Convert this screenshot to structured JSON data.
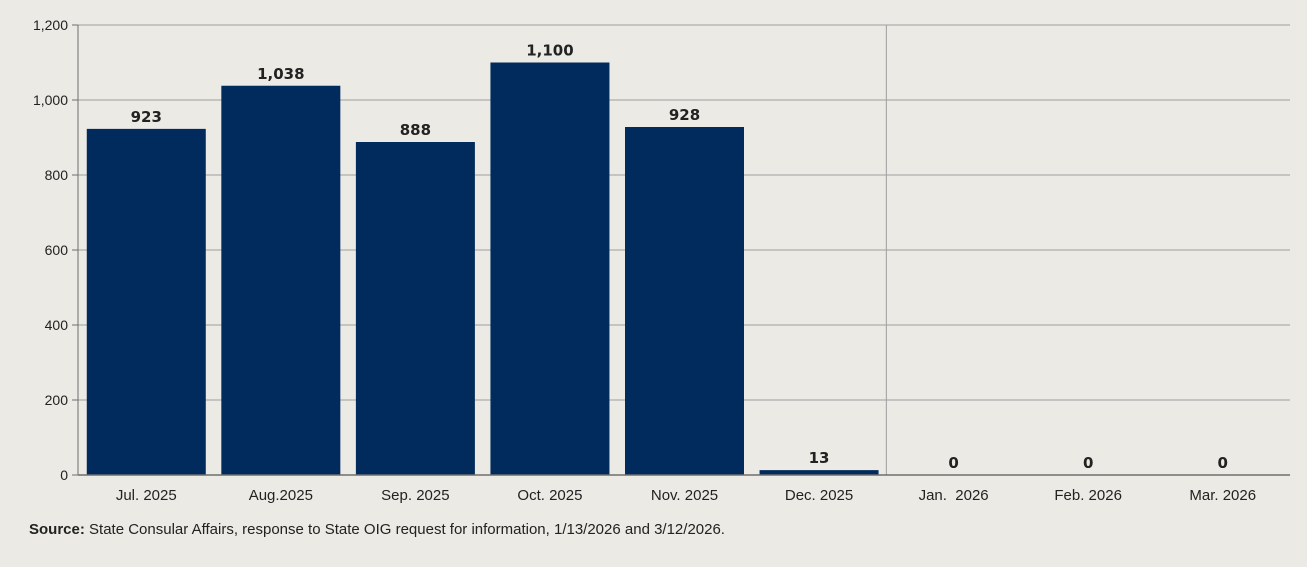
{
  "colors": {
    "background": "#ebeae5",
    "bar": "#002b5c",
    "grid": "#9e9e9e",
    "axis": "#6e6e6e",
    "text": "#222222"
  },
  "chart_data": {
    "type": "bar",
    "categories": [
      "Jul. 2025",
      "Aug.2025",
      "Sep. 2025",
      "Oct. 2025",
      "Nov. 2025",
      "Dec. 2025",
      "Jan.  2026",
      "Feb. 2026",
      "Mar. 2026"
    ],
    "values": [
      923,
      1038,
      888,
      1100,
      928,
      13,
      0,
      0,
      0
    ],
    "value_labels": [
      "923",
      "1,038",
      "888",
      "1,100",
      "928",
      "13",
      "0",
      "0",
      "0"
    ],
    "ylim": [
      0,
      1200
    ],
    "yticks": [
      0,
      200,
      400,
      600,
      800,
      1000,
      1200
    ],
    "ytick_labels": [
      "0",
      "200",
      "400",
      "600",
      "800",
      "1,000",
      "1,200"
    ],
    "grid": true,
    "divider_after_index": 5,
    "title": "",
    "xlabel": "",
    "ylabel": ""
  },
  "source": {
    "label": "Source:",
    "text": " State Consular Affairs, response to State OIG request for information, 1/13/2026 and 3/12/2026."
  }
}
